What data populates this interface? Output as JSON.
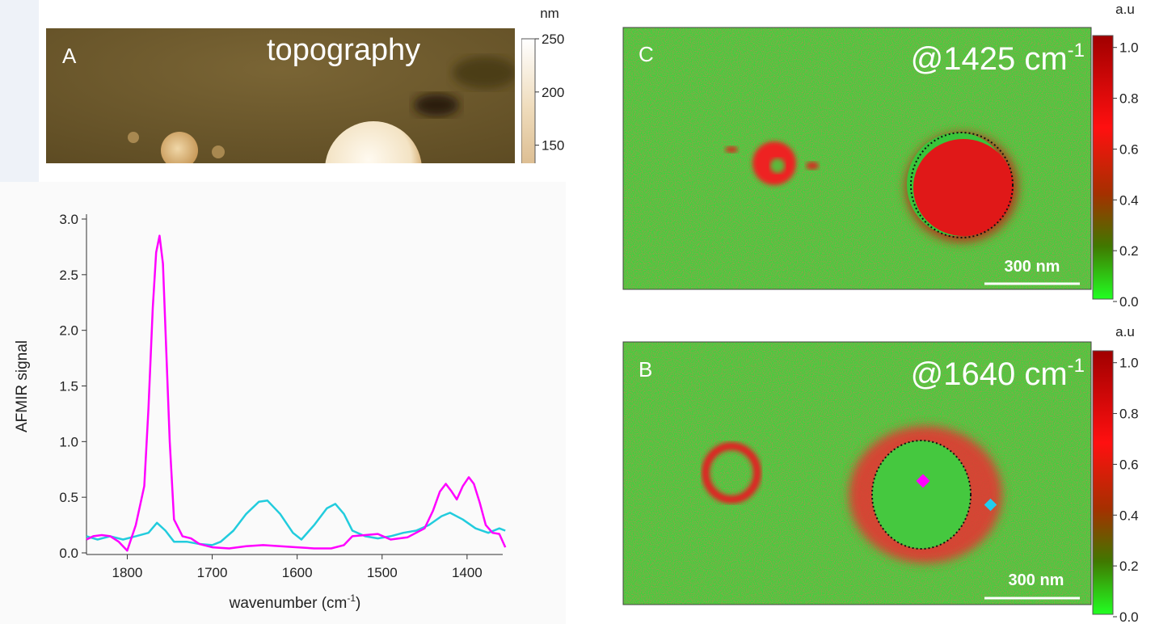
{
  "chart_data": {
    "type": "line",
    "y_label": "AFMIR signal",
    "x_label": "wavenumber (cm",
    "x_label_sup": "-1",
    "x_label_end": ")",
    "xlim": [
      1848,
      1358
    ],
    "xticks": [
      1800,
      1700,
      1600,
      1500,
      1400
    ],
    "ylim": [
      0,
      3
    ],
    "yticks": [
      {
        "value": 0,
        "label": "0.0"
      },
      0.5,
      {
        "value": 1,
        "label": "1.0"
      },
      1.5,
      {
        "value": 2,
        "label": "2.0"
      },
      2.5,
      {
        "value": 3,
        "label": "3.0"
      }
    ],
    "series": [
      {
        "color": "#ff00ff",
        "x": [
          1848,
          1840,
          1830,
          1820,
          1810,
          1800,
          1790,
          1780,
          1775,
          1770,
          1766,
          1762,
          1758,
          1754,
          1750,
          1745,
          1735,
          1725,
          1715,
          1700,
          1680,
          1660,
          1640,
          1620,
          1600,
          1580,
          1560,
          1545,
          1535,
          1520,
          1505,
          1490,
          1470,
          1450,
          1440,
          1432,
          1425,
          1418,
          1412,
          1405,
          1398,
          1392,
          1385,
          1378,
          1370,
          1362,
          1355
        ],
        "values": [
          0.12,
          0.15,
          0.16,
          0.15,
          0.1,
          0.02,
          0.25,
          0.6,
          1.3,
          2.2,
          2.7,
          2.85,
          2.6,
          1.8,
          1.0,
          0.3,
          0.15,
          0.13,
          0.08,
          0.05,
          0.04,
          0.06,
          0.07,
          0.06,
          0.05,
          0.04,
          0.04,
          0.07,
          0.15,
          0.16,
          0.17,
          0.12,
          0.14,
          0.22,
          0.38,
          0.55,
          0.62,
          0.55,
          0.48,
          0.6,
          0.68,
          0.62,
          0.45,
          0.25,
          0.18,
          0.17,
          0.05
        ]
      },
      {
        "color": "#22ccdd",
        "x": [
          1848,
          1835,
          1820,
          1805,
          1790,
          1775,
          1765,
          1755,
          1745,
          1730,
          1715,
          1700,
          1690,
          1675,
          1660,
          1645,
          1635,
          1620,
          1605,
          1595,
          1580,
          1565,
          1555,
          1545,
          1535,
          1520,
          1505,
          1490,
          1475,
          1460,
          1445,
          1430,
          1420,
          1405,
          1390,
          1375,
          1362,
          1355
        ],
        "values": [
          0.15,
          0.12,
          0.15,
          0.12,
          0.15,
          0.18,
          0.27,
          0.2,
          0.1,
          0.1,
          0.08,
          0.07,
          0.1,
          0.2,
          0.35,
          0.46,
          0.47,
          0.35,
          0.18,
          0.12,
          0.25,
          0.4,
          0.44,
          0.35,
          0.2,
          0.15,
          0.13,
          0.15,
          0.18,
          0.2,
          0.25,
          0.33,
          0.36,
          0.3,
          0.22,
          0.18,
          0.22,
          0.2
        ]
      }
    ]
  },
  "panels": {
    "A": {
      "letter": "A",
      "title": "topography",
      "unit": "nm",
      "clim": [
        133,
        250
      ],
      "cticks": [
        250,
        200,
        150
      ]
    },
    "C": {
      "letter": "C",
      "label": "@1425 cm",
      "label_sup": "-1",
      "scale_bar": "300 nm",
      "unit": "a.u",
      "clim": [
        0,
        1.05
      ],
      "cticks": [
        {
          "value": 0,
          "label": "0.0"
        },
        0.2,
        0.4,
        0.6,
        0.8,
        {
          "value": 1,
          "label": "1.0"
        }
      ]
    },
    "B": {
      "letter": "B",
      "label": "@1640 cm",
      "label_sup": "-1",
      "scale_bar": "300 nm",
      "unit": "a.u",
      "clim": [
        0,
        1.05
      ],
      "cticks": [
        {
          "value": 0,
          "label": "0.0"
        },
        0.2,
        0.4,
        0.6,
        0.8,
        {
          "value": 1,
          "label": "1.0"
        }
      ]
    }
  }
}
